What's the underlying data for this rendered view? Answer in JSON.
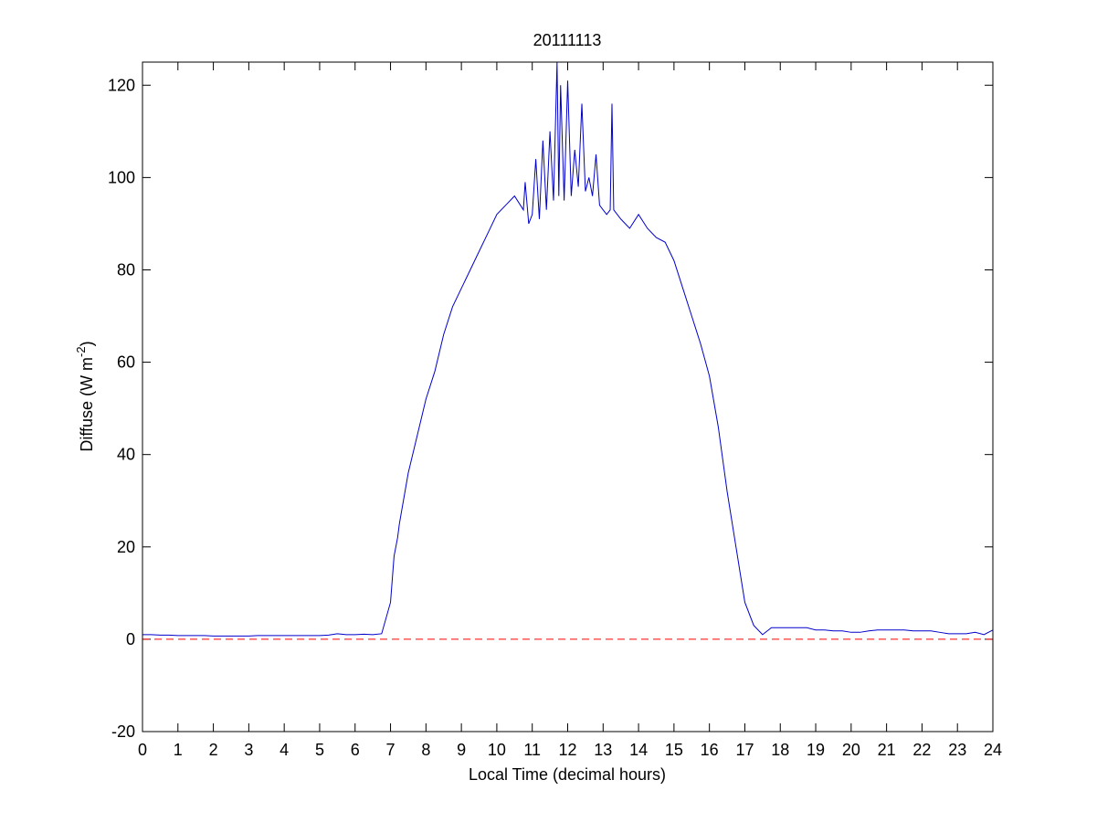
{
  "chart_data": {
    "type": "line",
    "title": "20111113",
    "xlabel": "Local Time (decimal hours)",
    "ylabel": {
      "text": "Diffuse (W m",
      "superscript": "-2",
      "suffix": ")"
    },
    "x": [
      0,
      0.25,
      0.5,
      0.75,
      1,
      1.25,
      1.5,
      1.75,
      2,
      2.25,
      2.5,
      2.75,
      3,
      3.25,
      3.5,
      3.75,
      4,
      4.25,
      4.5,
      4.75,
      5,
      5.25,
      5.5,
      5.75,
      6,
      6.25,
      6.5,
      6.75,
      7,
      7.1,
      7.2,
      7.25,
      7.5,
      7.75,
      8,
      8.25,
      8.5,
      8.75,
      9,
      9.25,
      9.5,
      9.75,
      10,
      10.25,
      10.5,
      10.75,
      10.8,
      10.9,
      11,
      11.1,
      11.2,
      11.3,
      11.4,
      11.5,
      11.6,
      11.7,
      11.75,
      11.8,
      11.9,
      12,
      12.1,
      12.2,
      12.3,
      12.4,
      12.5,
      12.6,
      12.7,
      12.8,
      12.9,
      13,
      13.1,
      13.2,
      13.25,
      13.3,
      13.5,
      13.75,
      14,
      14.25,
      14.5,
      14.75,
      15,
      15.25,
      15.5,
      15.75,
      16,
      16.25,
      16.5,
      16.75,
      17,
      17.25,
      17.5,
      17.75,
      18,
      18.25,
      18.5,
      18.75,
      19,
      19.25,
      19.5,
      19.75,
      20,
      20.25,
      20.5,
      20.75,
      21,
      21.25,
      21.5,
      21.75,
      22,
      22.25,
      22.5,
      22.75,
      23,
      23.25,
      23.5,
      23.75,
      24
    ],
    "series": [
      {
        "color": "#0000cc",
        "values": [
          1,
          1,
          0.9,
          0.9,
          0.8,
          0.8,
          0.8,
          0.8,
          0.7,
          0.7,
          0.7,
          0.7,
          0.7,
          0.8,
          0.8,
          0.8,
          0.8,
          0.8,
          0.8,
          0.8,
          0.8,
          0.9,
          1.2,
          1,
          1,
          1.1,
          1,
          1.2,
          8,
          18,
          22,
          25,
          36,
          44,
          52,
          58,
          66,
          72,
          76,
          80,
          84,
          88,
          92,
          94,
          96,
          93,
          99,
          90,
          92,
          104,
          91,
          108,
          93,
          110,
          95,
          125,
          96,
          120,
          95,
          121,
          96,
          106,
          98,
          116,
          97,
          100,
          96,
          105,
          94,
          93,
          92,
          93,
          116,
          93,
          91,
          89,
          92,
          89,
          87,
          86,
          82,
          76,
          70,
          64,
          57,
          46,
          32,
          20,
          8,
          3,
          1,
          2.5,
          2.5,
          2.5,
          2.5,
          2.5,
          2,
          2,
          1.8,
          1.8,
          1.5,
          1.5,
          1.8,
          2,
          2,
          2,
          2,
          1.8,
          1.8,
          1.8,
          1.5,
          1.2,
          1.2,
          1.2,
          1.5,
          1,
          2
        ]
      }
    ],
    "reference_line": {
      "value": 0,
      "color": "#ff0000",
      "style": "dashed"
    },
    "xlim": [
      0,
      24
    ],
    "xticks": [
      0,
      1,
      2,
      3,
      4,
      5,
      6,
      7,
      8,
      9,
      10,
      11,
      12,
      13,
      14,
      15,
      16,
      17,
      18,
      19,
      20,
      21,
      22,
      23,
      24
    ],
    "ylim": [
      -20,
      125
    ],
    "yticks": [
      -20,
      0,
      20,
      40,
      60,
      80,
      100,
      120
    ],
    "grid": false
  }
}
